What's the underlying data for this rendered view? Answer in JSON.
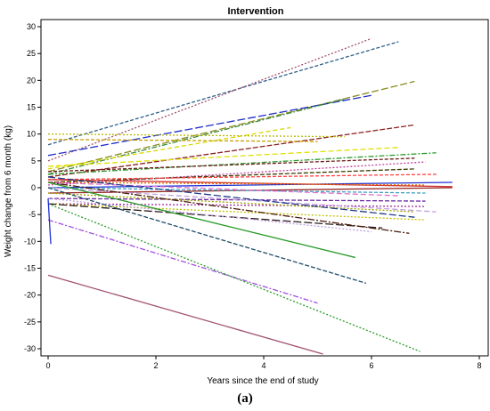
{
  "chart_data": {
    "type": "line",
    "title": "Intervention",
    "xlabel": "Years since the end of study",
    "ylabel": "Weight change from 6 month (kg)",
    "xlim": [
      0,
      8
    ],
    "ylim": [
      -31,
      31
    ],
    "xticks": [
      0,
      2,
      4,
      6,
      8
    ],
    "yticks": [
      -30,
      -25,
      -20,
      -15,
      -10,
      -5,
      0,
      5,
      10,
      15,
      20,
      25,
      30
    ],
    "grid": false,
    "legend": "none",
    "series": [
      {
        "x": [
          0,
          6.5
        ],
        "y": [
          8,
          27.2
        ],
        "color": "#2e5f8a",
        "dash": "4,2"
      },
      {
        "x": [
          0,
          6.0
        ],
        "y": [
          5,
          27.8
        ],
        "color": "#a05070",
        "dash": "2,2"
      },
      {
        "x": [
          0,
          6.8
        ],
        "y": [
          3,
          19.8
        ],
        "color": "#8a8a20",
        "dash": "8,3"
      },
      {
        "x": [
          0,
          6.0
        ],
        "y": [
          6,
          17.2
        ],
        "color": "#1e2ec8",
        "dash": "9,3"
      },
      {
        "x": [
          0,
          5.5
        ],
        "y": [
          2.5,
          16.5
        ],
        "color": "#3c8a3c",
        "dash": "6,2,2,2"
      },
      {
        "x": [
          0,
          4.5
        ],
        "y": [
          3.5,
          11.2
        ],
        "color": "#d8d800",
        "dash": "5,3"
      },
      {
        "x": [
          0,
          6.8
        ],
        "y": [
          2,
          11.7
        ],
        "color": "#8a2020",
        "dash": "6,2"
      },
      {
        "x": [
          0,
          5.5
        ],
        "y": [
          10,
          9.5
        ],
        "color": "#b8b800",
        "dash": "2,2"
      },
      {
        "x": [
          0,
          5.0
        ],
        "y": [
          9,
          8.6
        ],
        "color": "#c8a000",
        "dash": "4,2"
      },
      {
        "x": [
          0,
          6.5
        ],
        "y": [
          4,
          7.5
        ],
        "color": "#e0e000",
        "dash": "6,3"
      },
      {
        "x": [
          0,
          7.2
        ],
        "y": [
          2.5,
          6.5
        ],
        "color": "#2a9a2a",
        "dash": "6,2,2,2"
      },
      {
        "x": [
          0,
          6.8
        ],
        "y": [
          3,
          5.5
        ],
        "color": "#6a1a1a",
        "dash": "4,2"
      },
      {
        "x": [
          0,
          7.0
        ],
        "y": [
          0.5,
          4.8
        ],
        "color": "#c040a0",
        "dash": "2,2"
      },
      {
        "x": [
          0,
          6.8
        ],
        "y": [
          1,
          3.5
        ],
        "color": "#3a3a00",
        "dash": "5,2"
      },
      {
        "x": [
          0,
          7.2
        ],
        "y": [
          1.5,
          2.5
        ],
        "color": "#ff4040",
        "dash": "4,2"
      },
      {
        "x": [
          0,
          7.5
        ],
        "y": [
          0,
          1.0
        ],
        "color": "#1e32d2",
        "dash": ""
      },
      {
        "x": [
          0,
          7.5
        ],
        "y": [
          1.5,
          0.2
        ],
        "color": "#d23232",
        "dash": ""
      },
      {
        "x": [
          0,
          7.0
        ],
        "y": [
          1,
          0.5
        ],
        "color": "#e07000",
        "dash": "2,2"
      },
      {
        "x": [
          0,
          7.5
        ],
        "y": [
          -1,
          0.0
        ],
        "color": "#9a2a2a",
        "dash": ""
      },
      {
        "x": [
          0,
          7.0
        ],
        "y": [
          0,
          -1.0
        ],
        "color": "#40a0c0",
        "dash": "4,2"
      },
      {
        "x": [
          0,
          6.5
        ],
        "y": [
          1,
          -1.5
        ],
        "color": "#e070d0",
        "dash": "6,3"
      },
      {
        "x": [
          0,
          7.0
        ],
        "y": [
          -2,
          -2.5
        ],
        "color": "#6a2aa0",
        "dash": "5,2"
      },
      {
        "x": [
          0,
          7.0
        ],
        "y": [
          -3,
          -3.5
        ],
        "color": "#a02aa0",
        "dash": "2,2"
      },
      {
        "x": [
          0,
          7.2
        ],
        "y": [
          0,
          -4.5
        ],
        "color": "#c0a0e0",
        "dash": "6,3"
      },
      {
        "x": [
          0,
          6.8
        ],
        "y": [
          -1,
          -4.5
        ],
        "color": "#a0a000",
        "dash": "2,2"
      },
      {
        "x": [
          0,
          6.8
        ],
        "y": [
          2,
          -5.5
        ],
        "color": "#1e3c8a",
        "dash": "8,3"
      },
      {
        "x": [
          0,
          7.0
        ],
        "y": [
          -3,
          -6.0
        ],
        "color": "#c0c000",
        "dash": "2,2"
      },
      {
        "x": [
          0,
          6.2
        ],
        "y": [
          -3,
          -7.5
        ],
        "color": "#2a1a1a",
        "dash": "9,3"
      },
      {
        "x": [
          0,
          6.7
        ],
        "y": [
          1,
          -8.5
        ],
        "color": "#4a1a0a",
        "dash": "8,2,2,2"
      },
      {
        "x": [
          0,
          6.0
        ],
        "y": [
          -2,
          -8.2
        ],
        "color": "#c0a0e0",
        "dash": "2,2"
      },
      {
        "x": [
          0,
          5.7
        ],
        "y": [
          1,
          -13.0
        ],
        "color": "#2a9a2a",
        "dash": ""
      },
      {
        "x": [
          0,
          5.9
        ],
        "y": [
          0,
          -17.8
        ],
        "color": "#1e4c6a",
        "dash": "5,2"
      },
      {
        "x": [
          0,
          5.0
        ],
        "y": [
          -6,
          -21.5
        ],
        "color": "#a050e0",
        "dash": "6,2,2,2"
      },
      {
        "x": [
          0,
          6.9
        ],
        "y": [
          -3,
          -30.5
        ],
        "color": "#2a9a2a",
        "dash": "2,2"
      },
      {
        "x": [
          0,
          5.1
        ],
        "y": [
          -16.3,
          -31.0
        ],
        "color": "#a05070",
        "dash": ""
      },
      {
        "x": [
          0,
          0.05
        ],
        "y": [
          -2,
          -10.5
        ],
        "color": "#1e32d2",
        "dash": ""
      }
    ]
  },
  "caption": "(a)"
}
